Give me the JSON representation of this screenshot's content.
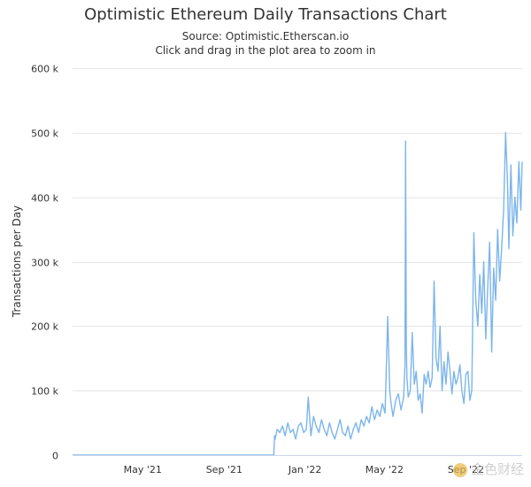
{
  "title": "Optimistic Ethereum Daily Transactions Chart",
  "subtitle_source": "Source: Optimistic.Etherscan.io",
  "subtitle_hint": "Click and drag in the plot area to zoom in",
  "watermark": {
    "text": "金色财经",
    "icon": "gold-coin-logo-icon"
  },
  "chart_data": {
    "type": "line",
    "title": "Optimistic Ethereum Daily Transactions Chart",
    "ylabel": "Transactions per Day",
    "xlabel": "",
    "ylim": [
      0,
      600000
    ],
    "xlim": [
      "2021-01-15",
      "2022-11-25"
    ],
    "yticks": [
      {
        "value": 0,
        "label": "0"
      },
      {
        "value": 100000,
        "label": "100 k"
      },
      {
        "value": 200000,
        "label": "200 k"
      },
      {
        "value": 300000,
        "label": "300 k"
      },
      {
        "value": 400000,
        "label": "400 k"
      },
      {
        "value": 500000,
        "label": "500 k"
      },
      {
        "value": 600000,
        "label": "600 k"
      }
    ],
    "xticks": [
      {
        "date": "2021-05-01",
        "label": "May '21"
      },
      {
        "date": "2021-09-01",
        "label": "Sep '21"
      },
      {
        "date": "2022-01-01",
        "label": "Jan '22"
      },
      {
        "date": "2022-05-01",
        "label": "May '22"
      },
      {
        "date": "2022-09-01",
        "label": "Sep '22"
      }
    ],
    "grid": true,
    "legend": false,
    "series": [
      {
        "color": "#7cb5ec",
        "x": [
          "2021-01-15",
          "2021-11-15",
          "2021-11-16",
          "2021-11-17",
          "2021-11-20",
          "2021-11-24",
          "2021-11-28",
          "2021-12-02",
          "2021-12-06",
          "2021-12-10",
          "2021-12-14",
          "2021-12-18",
          "2021-12-22",
          "2021-12-26",
          "2021-12-30",
          "2022-01-03",
          "2022-01-06",
          "2022-01-10",
          "2022-01-14",
          "2022-01-18",
          "2022-01-22",
          "2022-01-26",
          "2022-01-30",
          "2022-02-03",
          "2022-02-07",
          "2022-02-11",
          "2022-02-15",
          "2022-02-19",
          "2022-02-23",
          "2022-02-27",
          "2022-03-03",
          "2022-03-07",
          "2022-03-11",
          "2022-03-15",
          "2022-03-19",
          "2022-03-23",
          "2022-03-27",
          "2022-03-31",
          "2022-04-04",
          "2022-04-08",
          "2022-04-12",
          "2022-04-16",
          "2022-04-20",
          "2022-04-24",
          "2022-04-28",
          "2022-05-02",
          "2022-05-06",
          "2022-05-09",
          "2022-05-11",
          "2022-05-14",
          "2022-05-18",
          "2022-05-22",
          "2022-05-26",
          "2022-05-30",
          "2022-06-01",
          "2022-06-02",
          "2022-06-03",
          "2022-06-04",
          "2022-06-06",
          "2022-06-09",
          "2022-06-12",
          "2022-06-15",
          "2022-06-18",
          "2022-06-21",
          "2022-06-24",
          "2022-06-27",
          "2022-06-30",
          "2022-07-03",
          "2022-07-06",
          "2022-07-09",
          "2022-07-12",
          "2022-07-15",
          "2022-07-18",
          "2022-07-21",
          "2022-07-24",
          "2022-07-27",
          "2022-07-30",
          "2022-08-02",
          "2022-08-05",
          "2022-08-08",
          "2022-08-11",
          "2022-08-14",
          "2022-08-17",
          "2022-08-20",
          "2022-08-23",
          "2022-08-26",
          "2022-08-29",
          "2022-09-01",
          "2022-09-04",
          "2022-09-07",
          "2022-09-10",
          "2022-09-13",
          "2022-09-16",
          "2022-09-19",
          "2022-09-22",
          "2022-09-25",
          "2022-09-28",
          "2022-10-01",
          "2022-10-04",
          "2022-10-07",
          "2022-10-10",
          "2022-10-13",
          "2022-10-16",
          "2022-10-19",
          "2022-10-22",
          "2022-10-25",
          "2022-10-28",
          "2022-10-31",
          "2022-11-03",
          "2022-11-05",
          "2022-11-06",
          "2022-11-08",
          "2022-11-11",
          "2022-11-14",
          "2022-11-17",
          "2022-11-20",
          "2022-11-23",
          "2022-11-25"
        ],
        "y": [
          0,
          0,
          30000,
          25000,
          40000,
          35000,
          45000,
          30000,
          50000,
          35000,
          40000,
          25000,
          45000,
          50000,
          35000,
          40000,
          90000,
          30000,
          60000,
          45000,
          35000,
          55000,
          40000,
          30000,
          50000,
          35000,
          25000,
          40000,
          55000,
          35000,
          30000,
          45000,
          25000,
          40000,
          50000,
          35000,
          55000,
          45000,
          60000,
          50000,
          75000,
          55000,
          70000,
          60000,
          80000,
          65000,
          215000,
          100000,
          80000,
          60000,
          85000,
          95000,
          70000,
          90000,
          140000,
          487000,
          170000,
          120000,
          90000,
          100000,
          190000,
          110000,
          130000,
          85000,
          95000,
          65000,
          125000,
          110000,
          130000,
          105000,
          120000,
          270000,
          150000,
          130000,
          200000,
          100000,
          145000,
          110000,
          160000,
          130000,
          95000,
          130000,
          110000,
          120000,
          140000,
          100000,
          80000,
          125000,
          130000,
          85000,
          100000,
          345000,
          240000,
          200000,
          280000,
          220000,
          300000,
          180000,
          260000,
          330000,
          160000,
          290000,
          240000,
          350000,
          270000,
          320000,
          380000,
          500000,
          420000,
          320000,
          370000,
          450000,
          340000,
          400000,
          360000,
          455000,
          380000,
          455000
        ]
      }
    ]
  }
}
